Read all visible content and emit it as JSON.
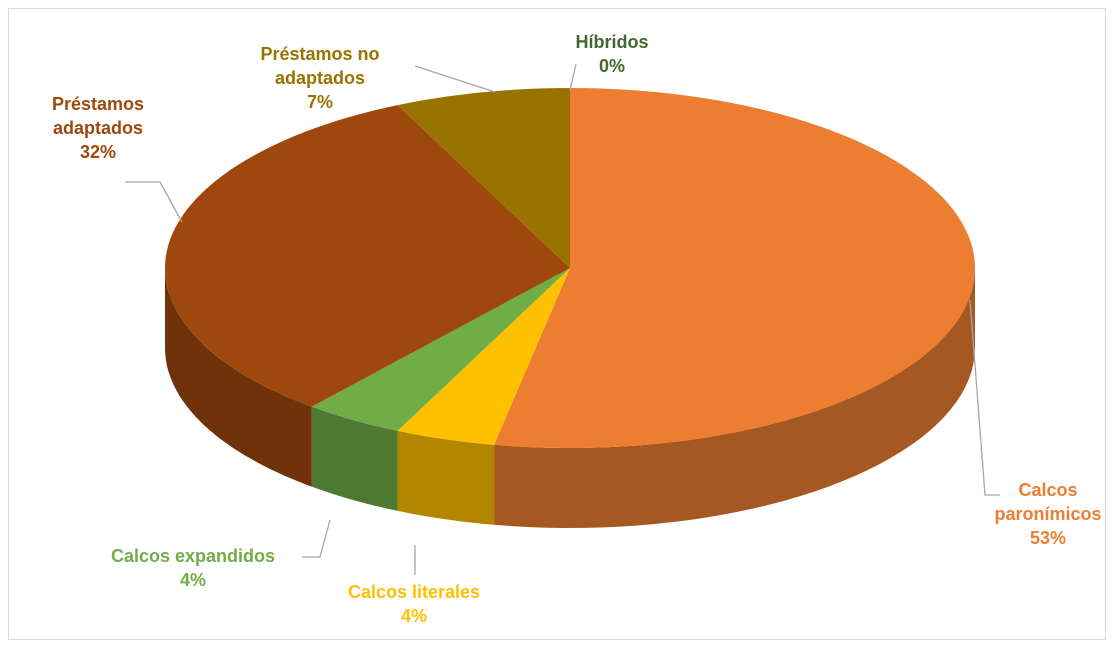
{
  "chart_data": {
    "type": "pie",
    "categories": [
      "Calcos paronímicos",
      "Calcos literales",
      "Calcos expandidos",
      "Préstamos adaptados",
      "Préstamos no adaptados",
      "Híbridos"
    ],
    "values": [
      53,
      4,
      4,
      32,
      7,
      0
    ],
    "value_labels": [
      "53%",
      "4%",
      "4%",
      "32%",
      "7%",
      "0%"
    ],
    "colors": [
      "#ED7D31",
      "#FFC000",
      "#70AD47",
      "#9E480E",
      "#997300",
      "#43682B"
    ]
  }
}
